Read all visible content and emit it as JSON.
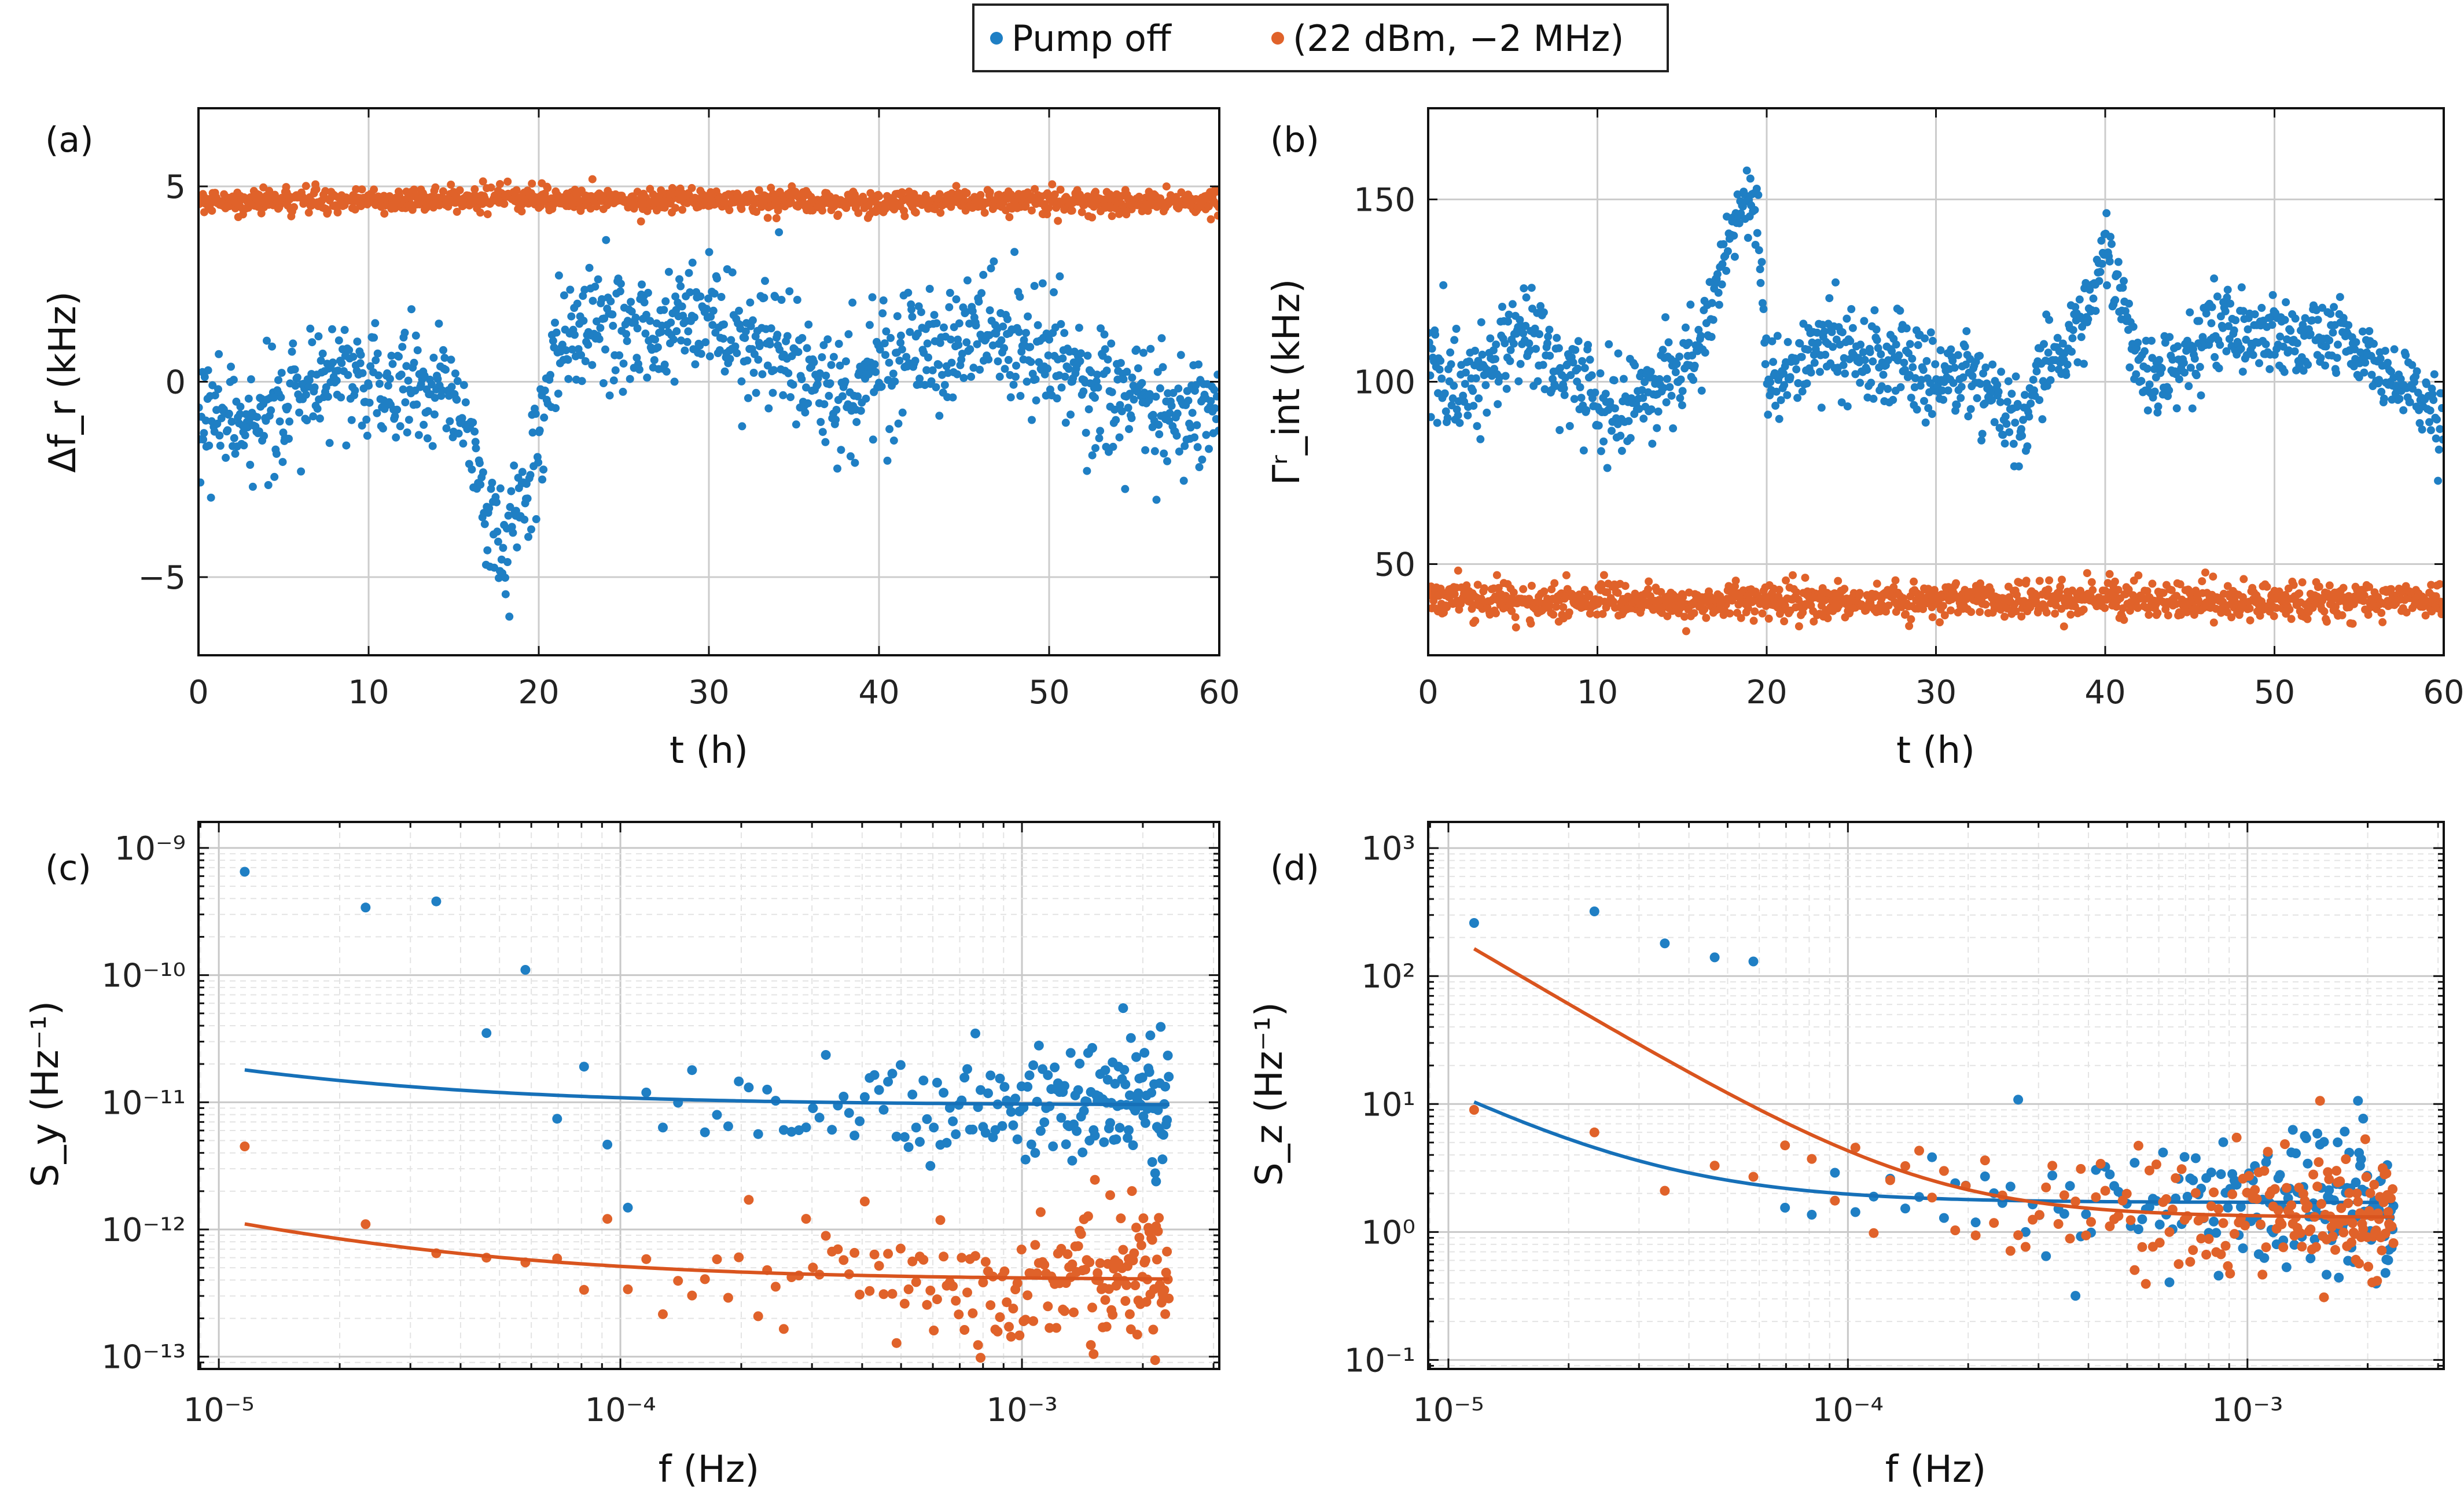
{
  "legend": {
    "entries": [
      {
        "label": "Pump off",
        "color": "#1f7fc4"
      },
      {
        "label": "(22 dBm, −2 MHz)",
        "color": "#e0622a"
      }
    ]
  },
  "chart_data": [
    {
      "panel": "(a)",
      "type": "scatter",
      "xlabel": "t (h)",
      "ylabel": "Δf_r (kHz)",
      "xlim": [
        0,
        60
      ],
      "ylim": [
        -7,
        7
      ],
      "xticks": [
        0,
        10,
        20,
        30,
        40,
        50,
        60
      ],
      "yticks": [
        -5,
        0,
        5
      ],
      "ytick_labels": [
        "−5",
        "0",
        "5"
      ],
      "series": [
        {
          "name": "Pump off",
          "points_per_hour": 19.5,
          "trend_x": [
            0,
            2,
            4,
            6,
            8,
            10,
            12,
            14,
            15,
            16,
            17,
            18,
            19,
            20,
            21,
            22,
            24,
            26,
            28,
            30,
            32,
            34,
            36,
            38,
            40,
            42,
            44,
            46,
            48,
            50,
            52,
            54,
            56,
            58,
            60
          ],
          "trend_y": [
            -0.5,
            -1.2,
            -0.7,
            -0.3,
            0.1,
            0.0,
            -0.3,
            0.2,
            -0.5,
            -1.5,
            -3.0,
            -4.5,
            -3.0,
            -1.5,
            0.8,
            1.2,
            1.5,
            1.3,
            1.6,
            1.8,
            1.2,
            0.8,
            0.0,
            -0.5,
            0.5,
            1.0,
            0.5,
            1.6,
            1.0,
            0.6,
            0.0,
            -0.3,
            -0.6,
            -0.9,
            -0.6
          ],
          "noise": 0.95
        },
        {
          "name": "(22 dBm, −2 MHz)",
          "points_per_hour": 19.5,
          "trend_x": [
            0,
            20,
            40,
            60
          ],
          "trend_y": [
            4.6,
            4.7,
            4.6,
            4.6
          ],
          "noise": 0.18
        }
      ]
    },
    {
      "panel": "(b)",
      "type": "scatter",
      "xlabel": "t (h)",
      "ylabel": "Γʳ_int (kHz)",
      "xlim": [
        0,
        60
      ],
      "ylim": [
        25,
        175
      ],
      "xticks": [
        0,
        10,
        20,
        30,
        40,
        50,
        60
      ],
      "yticks": [
        50,
        100,
        150
      ],
      "ytick_labels": [
        "50",
        "100",
        "150"
      ],
      "series": [
        {
          "name": "Pump off",
          "points_per_hour": 19.5,
          "trend_x": [
            0,
            1,
            2,
            4,
            6,
            8,
            10,
            12,
            14,
            16,
            17,
            18,
            19,
            19.6,
            20,
            22,
            24,
            26,
            28,
            30,
            32,
            34,
            35,
            36,
            38,
            39,
            40,
            41,
            42,
            44,
            46,
            47,
            48,
            50,
            52,
            54,
            56,
            58,
            60
          ],
          "trend_y": [
            110,
            102,
            95,
            108,
            112,
            104,
            93,
            94,
            100,
            108,
            128,
            140,
            150,
            140,
            98,
            105,
            112,
            105,
            106,
            100,
            104,
            93,
            88,
            100,
            112,
            122,
            135,
            125,
            101,
            104,
            112,
            118,
            112,
            114,
            110,
            115,
            104,
            98,
            88
          ],
          "noise": 7.5
        },
        {
          "name": "(22 dBm, −2 MHz)",
          "points_per_hour": 19.5,
          "trend_x": [
            0,
            5,
            60
          ],
          "trend_y": [
            41,
            40,
            40
          ],
          "noise": 3.0
        }
      ]
    },
    {
      "panel": "(c)",
      "type": "scatter+line",
      "xscale": "log",
      "yscale": "log",
      "xlabel": "f (Hz)",
      "ylabel": "S_y (Hz⁻¹)",
      "xlim": [
        8.9e-06,
        0.0031
      ],
      "ylim": [
        8e-14,
        1.6e-09
      ],
      "xticks": [
        1e-05,
        0.0001,
        0.001
      ],
      "xtick_labels": [
        "10⁻⁵",
        "10⁻⁴",
        "10⁻³"
      ],
      "yticks": [
        1e-13,
        1e-12,
        1e-11,
        1e-10,
        1e-09
      ],
      "ytick_labels": [
        "10⁻¹³",
        "10⁻¹²",
        "10⁻¹¹",
        "10⁻¹⁰",
        "10⁻⁹"
      ],
      "f_min": 1.16e-05,
      "f_max": 0.00233,
      "n_points": 200,
      "series": [
        {
          "name": "Pump off",
          "fit_A": 9.5e-12,
          "fit_B": 5.4e-16,
          "fit_alpha": 0.85,
          "scatter_spread": 0.55,
          "first_points": [
            [
              1.16e-05,
              6.5e-10
            ],
            [
              2.32e-05,
              3.4e-10
            ],
            [
              3.48e-05,
              3.8e-10
            ],
            [
              4.64e-05,
              3.5e-11
            ],
            [
              5.8e-05,
              1.1e-10
            ]
          ]
        },
        {
          "name": "(22 dBm, −2 MHz)",
          "fit_A": 4e-13,
          "fit_B": 4.5e-17,
          "fit_alpha": 0.85,
          "scatter_spread": 0.55,
          "first_points": [
            [
              1.16e-05,
              4.5e-12
            ],
            [
              2.32e-05,
              1.1e-12
            ],
            [
              3.48e-05,
              6.5e-13
            ],
            [
              4.64e-05,
              6e-13
            ],
            [
              5.8e-05,
              5.5e-13
            ]
          ]
        }
      ]
    },
    {
      "panel": "(d)",
      "type": "scatter+line",
      "xscale": "log",
      "yscale": "log",
      "xlabel": "f (Hz)",
      "ylabel": "S_z (Hz⁻¹)",
      "xlim": [
        8.9e-06,
        0.0031
      ],
      "ylim": [
        0.085,
        1600
      ],
      "xticks": [
        1e-05,
        0.0001,
        0.001
      ],
      "xtick_labels": [
        "10⁻⁵",
        "10⁻⁴",
        "10⁻³"
      ],
      "yticks": [
        0.1,
        1,
        10,
        100,
        1000
      ],
      "ytick_labels": [
        "10⁻¹",
        "10⁰",
        "10¹",
        "10²",
        "10³"
      ],
      "f_min": 1.16e-05,
      "f_max": 0.00233,
      "n_points": 200,
      "series": [
        {
          "name": "Pump off",
          "fit_A": 1.7,
          "fit_B": 1.1e-07,
          "fit_alpha": 1.6,
          "scatter_spread": 0.6,
          "first_points": [
            [
              1.16e-05,
              260
            ],
            [
              2.32e-05,
              320
            ],
            [
              3.48e-05,
              180
            ],
            [
              4.64e-05,
              140
            ],
            [
              5.8e-05,
              130
            ]
          ]
        },
        {
          "name": "(22 dBm, −2 MHz)",
          "fit_A": 1.3,
          "fit_B": 1.2e-07,
          "fit_alpha": 1.85,
          "scatter_spread": 0.6,
          "first_points": [
            [
              1.16e-05,
              9
            ],
            [
              2.32e-05,
              6
            ],
            [
              3.48e-05,
              2.1
            ],
            [
              4.64e-05,
              3.3
            ],
            [
              5.8e-05,
              2.7
            ]
          ]
        }
      ]
    }
  ]
}
